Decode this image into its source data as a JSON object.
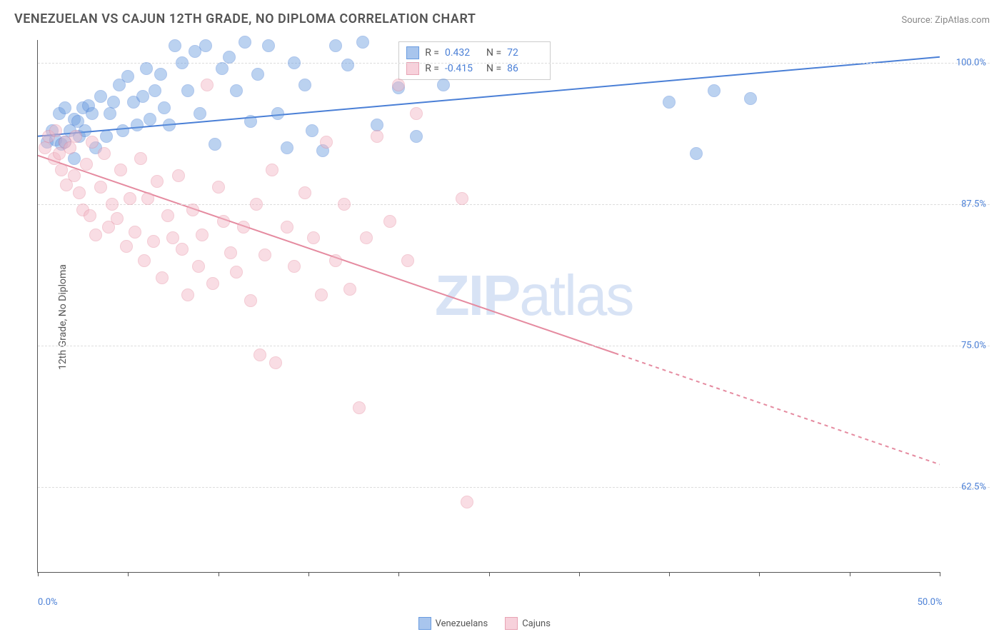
{
  "title": "VENEZUELAN VS CAJUN 12TH GRADE, NO DIPLOMA CORRELATION CHART",
  "source_label": "Source: ZipAtlas.com",
  "watermark_bold": "ZIP",
  "watermark_rest": "atlas",
  "y_axis_label": "12th Grade, No Diploma",
  "chart": {
    "type": "scatter",
    "background_color": "#ffffff",
    "grid_color": "#dddddd",
    "axis_color": "#555555",
    "text_color": "#555555",
    "value_color": "#4a7fd6",
    "xlim": [
      0,
      50
    ],
    "ylim": [
      55,
      102
    ],
    "x_ticks": [
      0,
      5,
      10,
      15,
      20,
      25,
      30,
      35,
      40,
      45,
      50
    ],
    "x_tick_labels": {
      "0": "0.0%",
      "50": "50.0%"
    },
    "y_ticks": [
      62.5,
      75.0,
      87.5,
      100.0
    ],
    "y_tick_labels": [
      "62.5%",
      "75.0%",
      "87.5%",
      "100.0%"
    ],
    "marker_radius": 9,
    "marker_opacity": 0.45,
    "line_width": 2,
    "title_fontsize": 18,
    "label_fontsize": 14,
    "tick_fontsize": 13,
    "series": [
      {
        "name": "Venezuelans",
        "color": "#6a9ce0",
        "stroke": "#4a7fd6",
        "R": "0.432",
        "N": "72",
        "trend": {
          "x1": 0,
          "y1": 93.5,
          "x2": 50,
          "y2": 100.5,
          "dash": "none"
        },
        "points": [
          [
            0.5,
            93.0
          ],
          [
            0.8,
            94.0
          ],
          [
            1.0,
            93.2
          ],
          [
            1.2,
            95.5
          ],
          [
            1.3,
            92.8
          ],
          [
            1.5,
            93.0
          ],
          [
            1.5,
            96.0
          ],
          [
            1.8,
            94.0
          ],
          [
            2.0,
            95.0
          ],
          [
            2.0,
            91.5
          ],
          [
            2.2,
            94.8
          ],
          [
            2.3,
            93.5
          ],
          [
            2.5,
            96.0
          ],
          [
            2.6,
            94.0
          ],
          [
            2.8,
            96.2
          ],
          [
            3.0,
            95.5
          ],
          [
            3.2,
            92.5
          ],
          [
            3.5,
            97.0
          ],
          [
            3.8,
            93.5
          ],
          [
            4.0,
            95.5
          ],
          [
            4.2,
            96.5
          ],
          [
            4.5,
            98.0
          ],
          [
            4.7,
            94.0
          ],
          [
            5.0,
            98.8
          ],
          [
            5.3,
            96.5
          ],
          [
            5.5,
            94.5
          ],
          [
            5.8,
            97.0
          ],
          [
            6.0,
            99.5
          ],
          [
            6.2,
            95.0
          ],
          [
            6.5,
            97.5
          ],
          [
            6.8,
            99.0
          ],
          [
            7.0,
            96.0
          ],
          [
            7.3,
            94.5
          ],
          [
            7.6,
            101.5
          ],
          [
            8.0,
            100.0
          ],
          [
            8.3,
            97.5
          ],
          [
            8.7,
            101.0
          ],
          [
            9.0,
            95.5
          ],
          [
            9.3,
            101.5
          ],
          [
            9.8,
            92.8
          ],
          [
            10.2,
            99.5
          ],
          [
            10.6,
            100.5
          ],
          [
            11.0,
            97.5
          ],
          [
            11.5,
            101.8
          ],
          [
            11.8,
            94.8
          ],
          [
            12.2,
            99.0
          ],
          [
            12.8,
            101.5
          ],
          [
            13.3,
            95.5
          ],
          [
            13.8,
            92.5
          ],
          [
            14.2,
            100.0
          ],
          [
            14.8,
            98.0
          ],
          [
            15.2,
            94.0
          ],
          [
            15.8,
            92.2
          ],
          [
            16.5,
            101.5
          ],
          [
            17.2,
            99.8
          ],
          [
            18.0,
            101.8
          ],
          [
            18.8,
            94.5
          ],
          [
            20.0,
            97.8
          ],
          [
            21.0,
            93.5
          ],
          [
            22.5,
            98.0
          ],
          [
            35.0,
            96.5
          ],
          [
            36.5,
            92.0
          ],
          [
            37.5,
            97.5
          ],
          [
            39.5,
            96.8
          ]
        ]
      },
      {
        "name": "Cajuns",
        "color": "#f2b6c4",
        "stroke": "#e58ba0",
        "R": "-0.415",
        "N": "86",
        "trend": {
          "x1": 0,
          "y1": 91.8,
          "x2": 50,
          "y2": 64.5,
          "dash_from_x": 32
        },
        "points": [
          [
            0.4,
            92.5
          ],
          [
            0.6,
            93.5
          ],
          [
            0.9,
            91.5
          ],
          [
            1.0,
            94.0
          ],
          [
            1.2,
            92.0
          ],
          [
            1.3,
            90.5
          ],
          [
            1.5,
            93.0
          ],
          [
            1.6,
            89.2
          ],
          [
            1.8,
            92.5
          ],
          [
            2.0,
            90.0
          ],
          [
            2.1,
            93.5
          ],
          [
            2.3,
            88.5
          ],
          [
            2.5,
            87.0
          ],
          [
            2.7,
            91.0
          ],
          [
            2.9,
            86.5
          ],
          [
            3.0,
            93.0
          ],
          [
            3.2,
            84.8
          ],
          [
            3.5,
            89.0
          ],
          [
            3.7,
            92.0
          ],
          [
            3.9,
            85.5
          ],
          [
            4.1,
            87.5
          ],
          [
            4.4,
            86.2
          ],
          [
            4.6,
            90.5
          ],
          [
            4.9,
            83.8
          ],
          [
            5.1,
            88.0
          ],
          [
            5.4,
            85.0
          ],
          [
            5.7,
            91.5
          ],
          [
            5.9,
            82.5
          ],
          [
            6.1,
            88.0
          ],
          [
            6.4,
            84.2
          ],
          [
            6.6,
            89.5
          ],
          [
            6.9,
            81.0
          ],
          [
            7.2,
            86.5
          ],
          [
            7.5,
            84.5
          ],
          [
            7.8,
            90.0
          ],
          [
            8.0,
            83.5
          ],
          [
            8.3,
            79.5
          ],
          [
            8.6,
            87.0
          ],
          [
            8.9,
            82.0
          ],
          [
            9.1,
            84.8
          ],
          [
            9.4,
            98.0
          ],
          [
            9.7,
            80.5
          ],
          [
            10.0,
            89.0
          ],
          [
            10.3,
            86.0
          ],
          [
            10.7,
            83.2
          ],
          [
            11.0,
            81.5
          ],
          [
            11.4,
            85.5
          ],
          [
            11.8,
            79.0
          ],
          [
            12.1,
            87.5
          ],
          [
            12.3,
            74.2
          ],
          [
            12.6,
            83.0
          ],
          [
            13.0,
            90.5
          ],
          [
            13.2,
            73.5
          ],
          [
            13.8,
            85.5
          ],
          [
            14.2,
            82.0
          ],
          [
            14.8,
            88.5
          ],
          [
            15.3,
            84.5
          ],
          [
            15.7,
            79.5
          ],
          [
            16.0,
            93.0
          ],
          [
            16.5,
            82.5
          ],
          [
            17.0,
            87.5
          ],
          [
            17.3,
            80.0
          ],
          [
            17.8,
            69.5
          ],
          [
            18.2,
            84.5
          ],
          [
            18.8,
            93.5
          ],
          [
            19.5,
            86.0
          ],
          [
            20.0,
            98.0
          ],
          [
            20.5,
            82.5
          ],
          [
            21.0,
            95.5
          ],
          [
            23.5,
            88.0
          ],
          [
            23.8,
            61.2
          ]
        ]
      }
    ]
  },
  "stats_box": {
    "rows": [
      {
        "swatch_fill": "#a8c5ed",
        "swatch_border": "#6a9ce0",
        "r_label": "R =",
        "r_val": "0.432",
        "n_label": "N =",
        "n_val": "72"
      },
      {
        "swatch_fill": "#f7d1db",
        "swatch_border": "#e8a3b4",
        "r_label": "R =",
        "r_val": "-0.415",
        "n_label": "N =",
        "n_val": "86"
      }
    ]
  },
  "bottom_legend": [
    {
      "swatch_fill": "#a8c5ed",
      "swatch_border": "#6a9ce0",
      "label": "Venezuelans"
    },
    {
      "swatch_fill": "#f7d1db",
      "swatch_border": "#e8a3b4",
      "label": "Cajuns"
    }
  ]
}
